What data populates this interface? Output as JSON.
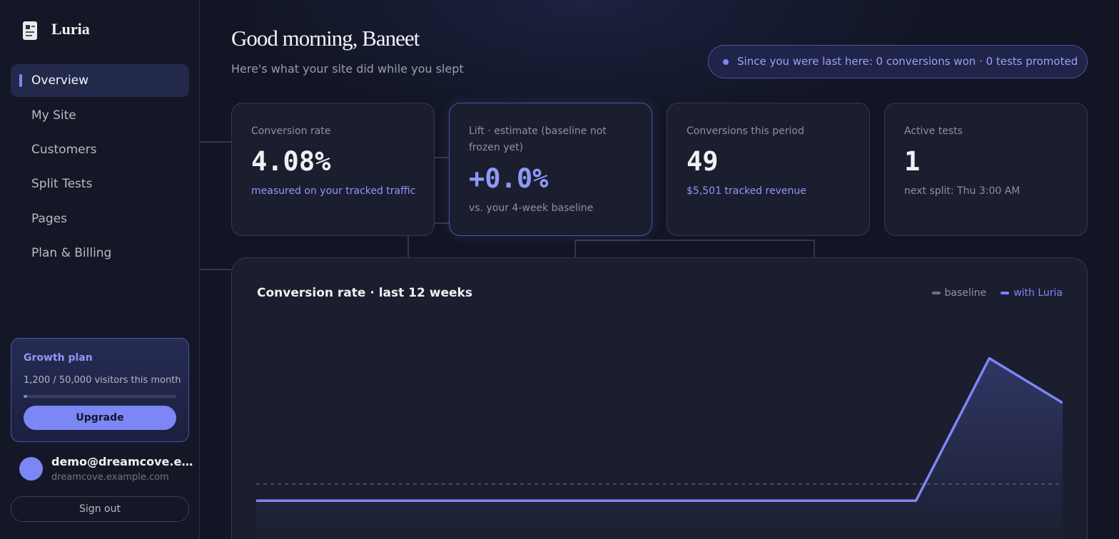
{
  "brand": {
    "name": "Luria"
  },
  "nav": [
    "Overview",
    "My Site",
    "Customers",
    "Split Tests",
    "Pages",
    "Plan & Billing"
  ],
  "header": {
    "title": "Good morning, Baneet",
    "subtitle": "Here's what your site did while you slept",
    "banner": "Since you were last here: 0 conversions won · 0 tests promoted"
  },
  "cards": [
    {
      "label": "Conversion rate",
      "value": "4.08%",
      "note": "measured on your tracked traffic"
    },
    {
      "label": "Lift · estimate (baseline not frozen yet)",
      "value": "+0.0%",
      "note": "vs. your 4-week baseline"
    },
    {
      "label": "Conversions this period",
      "value": "49",
      "note": "$5,501 tracked revenue"
    },
    {
      "label": "Active tests",
      "value": "1",
      "note": "next split: Thu 3:00 AM"
    }
  ],
  "plan": {
    "title": "Growth plan",
    "usage": "1,200 / 50,000 visitors this month",
    "button": "Upgrade"
  },
  "user": {
    "email": "demo@dreamcove.e…",
    "site": "dreamcove.example.com",
    "sign_out": "Sign out"
  },
  "chart_data": {
    "type": "line",
    "title": "Conversion rate · last 12 weeks",
    "categories": [
      null,
      null,
      null,
      null,
      null,
      null,
      null,
      null,
      null,
      null,
      null,
      null
    ],
    "series": [
      {
        "name": "baseline",
        "color": "#6b7080",
        "dashed": true,
        "values": [
          0.7,
          0.7,
          0.7,
          0.7,
          0.7,
          0.7,
          0.7,
          0.7,
          0.7,
          0.7,
          0.7,
          0.7
        ]
      },
      {
        "name": "with Luria",
        "color": "#7c86f5",
        "area": true,
        "values": [
          0,
          0,
          0,
          0,
          0,
          0,
          0,
          0,
          0,
          0,
          5.94,
          4.08
        ]
      }
    ],
    "ylim": [
      -1.6,
      7.8
    ]
  }
}
